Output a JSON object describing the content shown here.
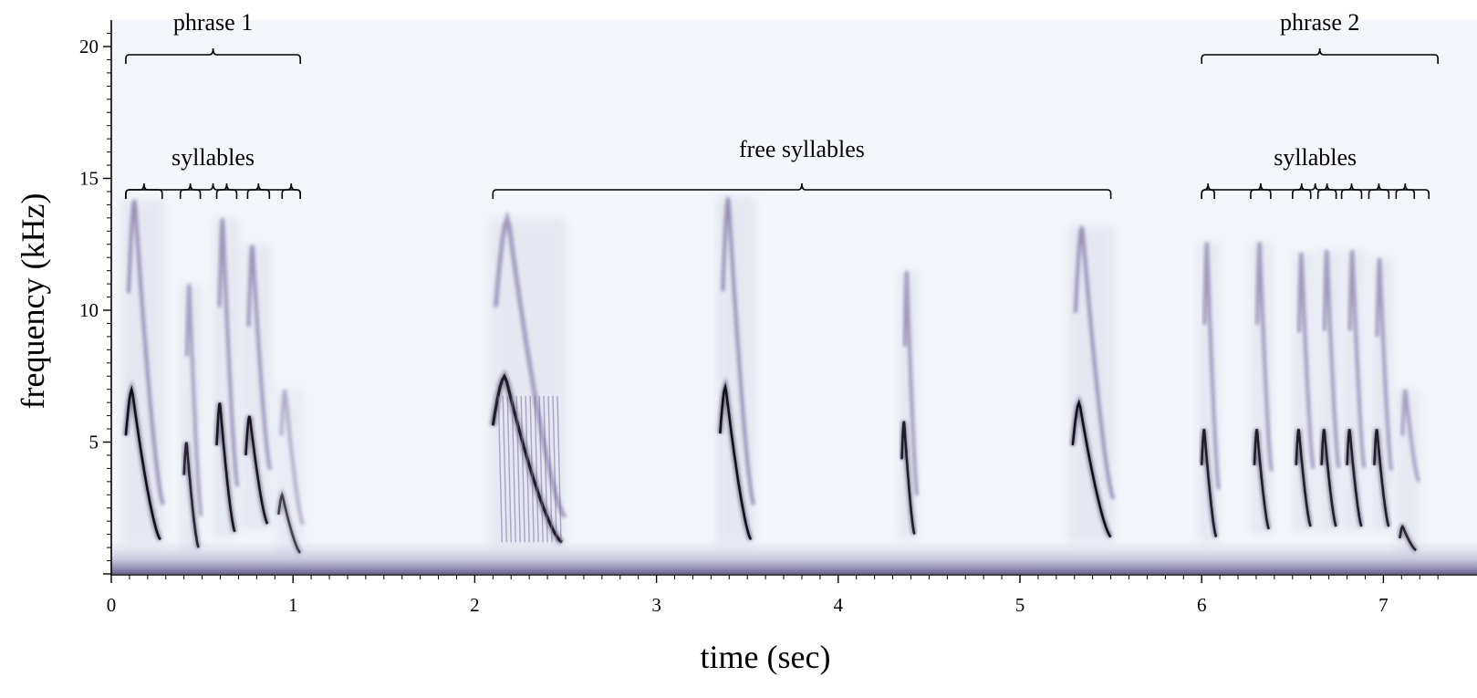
{
  "chart_data": {
    "type": "spectrogram",
    "xlabel": "time (sec)",
    "ylabel": "frequency (kHz)",
    "xlim": [
      0,
      7.3
    ],
    "ylim": [
      0,
      20.8
    ],
    "xticks": [
      0,
      1,
      2,
      3,
      4,
      5,
      6,
      7
    ],
    "yticks": [
      5,
      10,
      15,
      20
    ],
    "grid": false,
    "colormap": [
      "#f3f7fb",
      "#c9c6dd",
      "#7a6e9e",
      "#2c2240",
      "#0c0914"
    ],
    "annotations": [
      {
        "label": "phrase 1",
        "t_start": 0.08,
        "t_end": 1.04,
        "freq_khz": 19.3,
        "level": "phrase"
      },
      {
        "label": "syllables",
        "t_start": 0.08,
        "t_end": 1.04,
        "freq_khz": 14.8,
        "level": "group"
      },
      {
        "label": "free syllables",
        "t_start": 2.1,
        "t_end": 5.5,
        "freq_khz": 14.8,
        "level": "group"
      },
      {
        "label": "phrase 2",
        "t_start": 6.0,
        "t_end": 7.3,
        "freq_khz": 19.3,
        "level": "phrase"
      },
      {
        "label": "syllables",
        "t_start": 6.0,
        "t_end": 7.25,
        "freq_khz": 14.8,
        "level": "group"
      }
    ],
    "syllable_brackets": [
      {
        "group": "phrase 1",
        "t_start": 0.08,
        "t_end": 0.28
      },
      {
        "group": "phrase 1",
        "t_start": 0.38,
        "t_end": 0.49
      },
      {
        "group": "phrase 1",
        "t_start": 0.58,
        "t_end": 0.69
      },
      {
        "group": "phrase 1",
        "t_start": 0.75,
        "t_end": 0.87
      },
      {
        "group": "phrase 1",
        "t_start": 0.94,
        "t_end": 1.04
      },
      {
        "group": "phrase 2",
        "t_start": 6.0,
        "t_end": 6.07
      },
      {
        "group": "phrase 2",
        "t_start": 6.27,
        "t_end": 6.38
      },
      {
        "group": "phrase 2",
        "t_start": 6.5,
        "t_end": 6.6
      },
      {
        "group": "phrase 2",
        "t_start": 6.64,
        "t_end": 6.74
      },
      {
        "group": "phrase 2",
        "t_start": 6.77,
        "t_end": 6.88
      },
      {
        "group": "phrase 2",
        "t_start": 6.92,
        "t_end": 7.03
      },
      {
        "group": "phrase 2",
        "t_start": 7.07,
        "t_end": 7.17
      }
    ],
    "syllables": [
      {
        "t_on": 0.08,
        "t_off": 0.27,
        "f_low_khz": 1.3,
        "f_high_khz": 14.2,
        "fundamental_peak_khz": 7.0,
        "intensity": 0.95
      },
      {
        "t_on": 0.4,
        "t_off": 0.48,
        "f_low_khz": 1.0,
        "f_high_khz": 11.0,
        "fundamental_peak_khz": 5.0,
        "intensity": 0.8
      },
      {
        "t_on": 0.58,
        "t_off": 0.68,
        "f_low_khz": 1.6,
        "f_high_khz": 13.5,
        "fundamental_peak_khz": 6.5,
        "intensity": 0.9
      },
      {
        "t_on": 0.74,
        "t_off": 0.86,
        "f_low_khz": 1.9,
        "f_high_khz": 12.5,
        "fundamental_peak_khz": 6.0,
        "intensity": 0.9
      },
      {
        "t_on": 0.92,
        "t_off": 1.04,
        "f_low_khz": 0.8,
        "f_high_khz": 7.0,
        "fundamental_peak_khz": 3.0,
        "intensity": 0.65
      },
      {
        "t_on": 2.1,
        "t_off": 2.48,
        "f_low_khz": 1.2,
        "f_high_khz": 13.5,
        "fundamental_peak_khz": 7.5,
        "intensity": 0.85
      },
      {
        "t_on": 3.35,
        "t_off": 3.52,
        "f_low_khz": 1.3,
        "f_high_khz": 14.3,
        "fundamental_peak_khz": 7.1,
        "intensity": 0.95
      },
      {
        "t_on": 4.35,
        "t_off": 4.42,
        "f_low_khz": 1.5,
        "f_high_khz": 11.5,
        "fundamental_peak_khz": 5.8,
        "intensity": 0.85
      },
      {
        "t_on": 5.29,
        "t_off": 5.5,
        "f_low_khz": 1.4,
        "f_high_khz": 13.2,
        "fundamental_peak_khz": 6.5,
        "intensity": 0.95
      },
      {
        "t_on": 6.0,
        "t_off": 6.08,
        "f_low_khz": 1.4,
        "f_high_khz": 12.6,
        "fundamental_peak_khz": 5.5,
        "intensity": 0.85
      },
      {
        "t_on": 6.29,
        "t_off": 6.37,
        "f_low_khz": 1.7,
        "f_high_khz": 12.6,
        "fundamental_peak_khz": 5.5,
        "intensity": 0.85
      },
      {
        "t_on": 6.52,
        "t_off": 6.6,
        "f_low_khz": 1.8,
        "f_high_khz": 12.2,
        "fundamental_peak_khz": 5.5,
        "intensity": 0.85
      },
      {
        "t_on": 6.66,
        "t_off": 6.74,
        "f_low_khz": 1.8,
        "f_high_khz": 12.3,
        "fundamental_peak_khz": 5.5,
        "intensity": 0.85
      },
      {
        "t_on": 6.8,
        "t_off": 6.88,
        "f_low_khz": 1.8,
        "f_high_khz": 12.3,
        "fundamental_peak_khz": 5.5,
        "intensity": 0.85
      },
      {
        "t_on": 6.95,
        "t_off": 7.03,
        "f_low_khz": 1.8,
        "f_high_khz": 12.0,
        "fundamental_peak_khz": 5.5,
        "intensity": 0.85
      },
      {
        "t_on": 7.09,
        "t_off": 7.18,
        "f_low_khz": 0.9,
        "f_high_khz": 7.0,
        "fundamental_peak_khz": 1.8,
        "intensity": 0.8
      }
    ],
    "low_frequency_noise_band_khz": [
      0,
      1.2
    ]
  }
}
